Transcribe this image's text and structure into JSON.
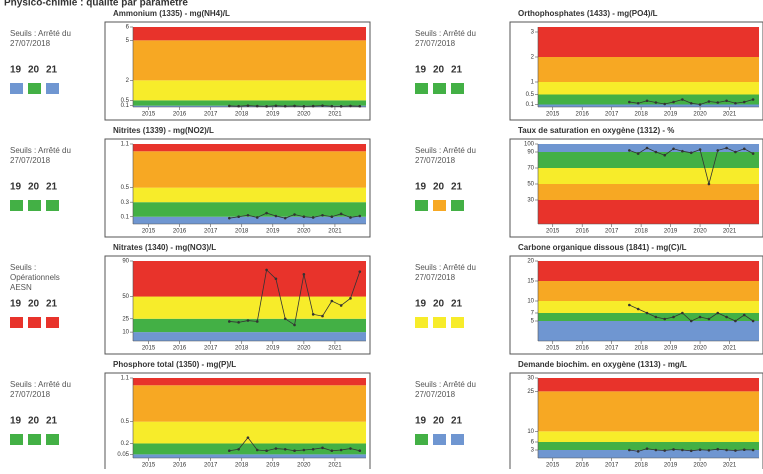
{
  "header": {
    "title": "Physico-chimie : qualité par paramètre"
  },
  "chart_data": [
    {
      "type": "line",
      "title": "Ammonium (1335) - mg(NH4)/L",
      "threshold": [
        "Seuils : Arrêté du",
        "27/07/2018"
      ],
      "years": [
        "19",
        "20",
        "21"
      ],
      "status_colors": [
        "#6f96d1",
        "#43b045",
        "#6f96d1"
      ],
      "xlim": [
        2014.5,
        2022
      ],
      "xticks": [
        2015,
        2016,
        2017,
        2018,
        2019,
        2020,
        2021
      ],
      "ylim": [
        0,
        6
      ],
      "yticks": [
        0.1,
        0.5,
        2,
        5,
        6
      ],
      "bands": [
        {
          "from": 0,
          "to": 0.1,
          "color": "#6f96d1"
        },
        {
          "from": 0.1,
          "to": 0.5,
          "color": "#43b045"
        },
        {
          "from": 0.5,
          "to": 2,
          "color": "#f7ec2a"
        },
        {
          "from": 2,
          "to": 5,
          "color": "#f7a823"
        },
        {
          "from": 5,
          "to": 6,
          "color": "#e8332b"
        }
      ],
      "color": "#333333",
      "x": [
        2017.6,
        2017.9,
        2018.2,
        2018.5,
        2018.8,
        2019.1,
        2019.4,
        2019.7,
        2020.0,
        2020.3,
        2020.6,
        2020.9,
        2021.2,
        2021.5,
        2021.8
      ],
      "values": [
        0.08,
        0.06,
        0.1,
        0.07,
        0.05,
        0.09,
        0.06,
        0.08,
        0.05,
        0.07,
        0.1,
        0.06,
        0.05,
        0.08,
        0.06
      ]
    },
    {
      "type": "line",
      "title": "Orthophosphates (1433) - mg(PO4)/L",
      "threshold": [
        "Seuils : Arrêté du",
        "27/07/2018"
      ],
      "years": [
        "19",
        "20",
        "21"
      ],
      "status_colors": [
        "#43b045",
        "#43b045",
        "#43b045"
      ],
      "xlim": [
        2014.5,
        2022
      ],
      "xticks": [
        2015,
        2016,
        2017,
        2018,
        2019,
        2020,
        2021
      ],
      "ylim": [
        0,
        3.2
      ],
      "yticks": [
        0.1,
        0.5,
        1,
        2,
        3
      ],
      "bands": [
        {
          "from": 0,
          "to": 0.1,
          "color": "#6f96d1"
        },
        {
          "from": 0.1,
          "to": 0.5,
          "color": "#43b045"
        },
        {
          "from": 0.5,
          "to": 1,
          "color": "#f7ec2a"
        },
        {
          "from": 1,
          "to": 2,
          "color": "#f7a823"
        },
        {
          "from": 2,
          "to": 3.2,
          "color": "#e8332b"
        }
      ],
      "color": "#333333",
      "x": [
        2017.6,
        2017.9,
        2018.2,
        2018.5,
        2018.8,
        2019.1,
        2019.4,
        2019.7,
        2020.0,
        2020.3,
        2020.6,
        2020.9,
        2021.2,
        2021.5,
        2021.8
      ],
      "values": [
        0.2,
        0.15,
        0.25,
        0.18,
        0.12,
        0.2,
        0.3,
        0.15,
        0.1,
        0.22,
        0.18,
        0.25,
        0.15,
        0.2,
        0.3
      ]
    },
    {
      "type": "line",
      "title": "Nitrites (1339) - mg(NO2)/L",
      "threshold": [
        "Seuils : Arrêté du",
        "27/07/2018"
      ],
      "years": [
        "19",
        "20",
        "21"
      ],
      "status_colors": [
        "#43b045",
        "#43b045",
        "#43b045"
      ],
      "xlim": [
        2014.5,
        2022
      ],
      "xticks": [
        2015,
        2016,
        2017,
        2018,
        2019,
        2020,
        2021
      ],
      "ylim": [
        0,
        1.1
      ],
      "yticks": [
        0.1,
        0.3,
        0.5,
        1.1
      ],
      "bands": [
        {
          "from": 0,
          "to": 0.1,
          "color": "#6f96d1"
        },
        {
          "from": 0.1,
          "to": 0.3,
          "color": "#43b045"
        },
        {
          "from": 0.3,
          "to": 0.5,
          "color": "#f7ec2a"
        },
        {
          "from": 0.5,
          "to": 1,
          "color": "#f7a823"
        },
        {
          "from": 1,
          "to": 1.1,
          "color": "#e8332b"
        }
      ],
      "color": "#333333",
      "x": [
        2017.6,
        2017.9,
        2018.2,
        2018.5,
        2018.8,
        2019.1,
        2019.4,
        2019.7,
        2020.0,
        2020.3,
        2020.6,
        2020.9,
        2021.2,
        2021.5,
        2021.8
      ],
      "values": [
        0.08,
        0.1,
        0.12,
        0.09,
        0.15,
        0.11,
        0.08,
        0.13,
        0.1,
        0.09,
        0.12,
        0.1,
        0.14,
        0.09,
        0.11
      ]
    },
    {
      "type": "line",
      "title": "Taux de saturation en oxygène (1312) - %",
      "threshold": [
        "Seuils : Arrêté du",
        "27/07/2018"
      ],
      "years": [
        "19",
        "20",
        "21"
      ],
      "status_colors": [
        "#43b045",
        "#f7a823",
        "#43b045"
      ],
      "xlim": [
        2014.5,
        2022
      ],
      "xticks": [
        2015,
        2016,
        2017,
        2018,
        2019,
        2020,
        2021
      ],
      "ylim": [
        0,
        100
      ],
      "yticks": [
        30,
        50,
        70,
        90,
        100
      ],
      "bands": [
        {
          "from": 0,
          "to": 30,
          "color": "#e8332b"
        },
        {
          "from": 30,
          "to": 50,
          "color": "#f7a823"
        },
        {
          "from": 50,
          "to": 70,
          "color": "#f7ec2a"
        },
        {
          "from": 70,
          "to": 90,
          "color": "#43b045"
        },
        {
          "from": 90,
          "to": 100,
          "color": "#6f96d1"
        }
      ],
      "color": "#333333",
      "x": [
        2017.6,
        2017.9,
        2018.2,
        2018.5,
        2018.8,
        2019.1,
        2019.4,
        2019.7,
        2020.0,
        2020.3,
        2020.6,
        2020.9,
        2021.2,
        2021.5,
        2021.8
      ],
      "values": [
        92,
        88,
        95,
        90,
        86,
        94,
        91,
        89,
        93,
        50,
        92,
        95,
        90,
        94,
        88
      ]
    },
    {
      "type": "line",
      "title": "Nitrates (1340) - mg(NO3)/L",
      "threshold": [
        "Seuils :",
        "Opérationnels",
        "AESN"
      ],
      "years": [
        "19",
        "20",
        "21"
      ],
      "status_colors": [
        "#e8332b",
        "#e8332b",
        "#e8332b"
      ],
      "xlim": [
        2014.5,
        2022
      ],
      "xticks": [
        2015,
        2016,
        2017,
        2018,
        2019,
        2020,
        2021
      ],
      "ylim": [
        0,
        90
      ],
      "yticks": [
        10,
        25,
        50,
        90
      ],
      "bands": [
        {
          "from": 0,
          "to": 10,
          "color": "#6f96d1"
        },
        {
          "from": 10,
          "to": 25,
          "color": "#43b045"
        },
        {
          "from": 25,
          "to": 50,
          "color": "#f7ec2a"
        },
        {
          "from": 50,
          "to": 90,
          "color": "#e8332b"
        }
      ],
      "color": "#333333",
      "x": [
        2017.6,
        2017.9,
        2018.2,
        2018.5,
        2018.8,
        2019.1,
        2019.4,
        2019.7,
        2020.0,
        2020.3,
        2020.6,
        2020.9,
        2021.2,
        2021.5,
        2021.8
      ],
      "values": [
        22,
        21,
        23,
        22,
        80,
        70,
        25,
        18,
        75,
        30,
        28,
        45,
        40,
        48,
        78
      ]
    },
    {
      "type": "line",
      "title": "Carbone organique dissous (1841) - mg(C)/L",
      "threshold": [
        "Seuils : Arrêté du",
        "27/07/2018"
      ],
      "years": [
        "19",
        "20",
        "21"
      ],
      "status_colors": [
        "#f7ec2a",
        "#f7ec2a",
        "#f7ec2a"
      ],
      "xlim": [
        2014.5,
        2022
      ],
      "xticks": [
        2015,
        2016,
        2017,
        2018,
        2019,
        2020,
        2021
      ],
      "ylim": [
        0,
        20
      ],
      "yticks": [
        5,
        7,
        10,
        15,
        20
      ],
      "bands": [
        {
          "from": 0,
          "to": 5,
          "color": "#6f96d1"
        },
        {
          "from": 5,
          "to": 7,
          "color": "#43b045"
        },
        {
          "from": 7,
          "to": 10,
          "color": "#f7ec2a"
        },
        {
          "from": 10,
          "to": 15,
          "color": "#f7a823"
        },
        {
          "from": 15,
          "to": 20,
          "color": "#e8332b"
        }
      ],
      "color": "#333333",
      "x": [
        2017.6,
        2017.9,
        2018.2,
        2018.5,
        2018.8,
        2019.1,
        2019.4,
        2019.7,
        2020.0,
        2020.3,
        2020.6,
        2020.9,
        2021.2,
        2021.5,
        2021.8
      ],
      "values": [
        9,
        8,
        7,
        6,
        5.5,
        6,
        7,
        5,
        6,
        5.5,
        7,
        6,
        5,
        6.5,
        5
      ]
    },
    {
      "type": "line",
      "title": "Phosphore total (1350) - mg(P)/L",
      "threshold": [
        "Seuils : Arrêté du",
        "27/07/2018"
      ],
      "years": [
        "19",
        "20",
        "21"
      ],
      "status_colors": [
        "#43b045",
        "#43b045",
        "#43b045"
      ],
      "xlim": [
        2014.5,
        2022
      ],
      "xticks": [
        2015,
        2016,
        2017,
        2018,
        2019,
        2020,
        2021
      ],
      "ylim": [
        0,
        1.1
      ],
      "yticks": [
        0.05,
        0.2,
        0.5,
        1.1
      ],
      "bands": [
        {
          "from": 0,
          "to": 0.05,
          "color": "#6f96d1"
        },
        {
          "from": 0.05,
          "to": 0.2,
          "color": "#43b045"
        },
        {
          "from": 0.2,
          "to": 0.5,
          "color": "#f7ec2a"
        },
        {
          "from": 0.5,
          "to": 1,
          "color": "#f7a823"
        },
        {
          "from": 1,
          "to": 1.1,
          "color": "#e8332b"
        }
      ],
      "color": "#333333",
      "x": [
        2017.6,
        2017.9,
        2018.2,
        2018.5,
        2018.8,
        2019.1,
        2019.4,
        2019.7,
        2020.0,
        2020.3,
        2020.6,
        2020.9,
        2021.2,
        2021.5,
        2021.8
      ],
      "values": [
        0.1,
        0.12,
        0.28,
        0.11,
        0.1,
        0.13,
        0.12,
        0.1,
        0.11,
        0.12,
        0.14,
        0.1,
        0.11,
        0.13,
        0.1
      ]
    },
    {
      "type": "line",
      "title": "Demande biochim. en oxygène (1313) - mg/L",
      "threshold": [
        "Seuils : Arrêté du",
        "27/07/2018"
      ],
      "years": [
        "19",
        "20",
        "21"
      ],
      "status_colors": [
        "#43b045",
        "#6f96d1",
        "#6f96d1"
      ],
      "xlim": [
        2014.5,
        2022
      ],
      "xticks": [
        2015,
        2016,
        2017,
        2018,
        2019,
        2020,
        2021
      ],
      "ylim": [
        0,
        30
      ],
      "yticks": [
        3,
        6,
        10,
        25,
        30
      ],
      "bands": [
        {
          "from": 0,
          "to": 3,
          "color": "#6f96d1"
        },
        {
          "from": 3,
          "to": 6,
          "color": "#43b045"
        },
        {
          "from": 6,
          "to": 10,
          "color": "#f7ec2a"
        },
        {
          "from": 10,
          "to": 25,
          "color": "#f7a823"
        },
        {
          "from": 25,
          "to": 30,
          "color": "#e8332b"
        }
      ],
      "color": "#333333",
      "x": [
        2017.6,
        2017.9,
        2018.2,
        2018.5,
        2018.8,
        2019.1,
        2019.4,
        2019.7,
        2020.0,
        2020.3,
        2020.6,
        2020.9,
        2021.2,
        2021.5,
        2021.8
      ],
      "values": [
        3,
        2.5,
        3.5,
        3,
        2.8,
        3.2,
        3,
        2.7,
        3.1,
        2.9,
        3.3,
        3,
        2.8,
        3.1,
        3
      ]
    }
  ]
}
